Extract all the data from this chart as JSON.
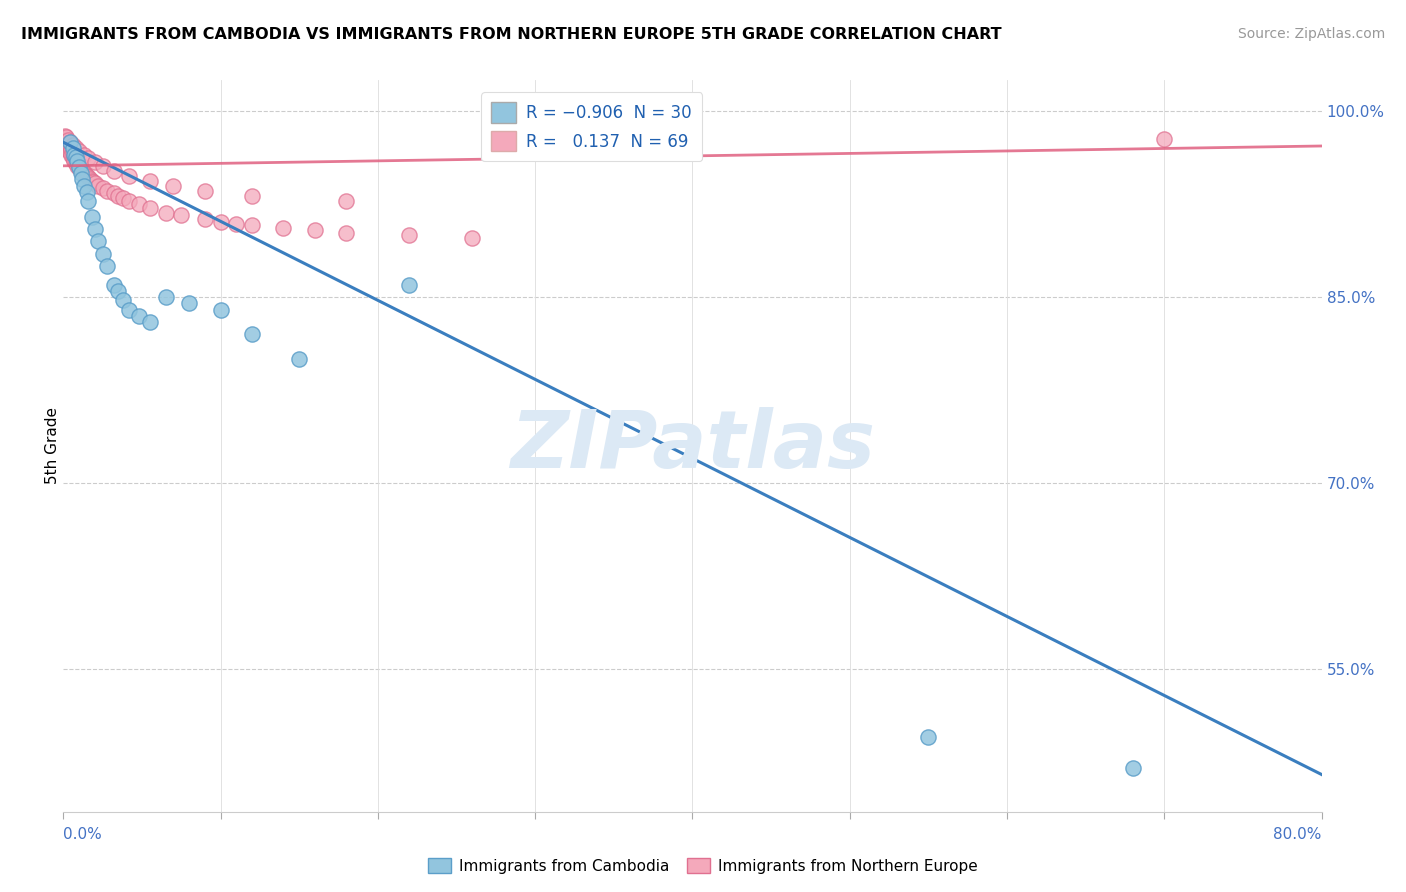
{
  "title": "IMMIGRANTS FROM CAMBODIA VS IMMIGRANTS FROM NORTHERN EUROPE 5TH GRADE CORRELATION CHART",
  "source": "Source: ZipAtlas.com",
  "ylabel": "5th Grade",
  "right_yticks": [
    "100.0%",
    "85.0%",
    "70.0%",
    "55.0%"
  ],
  "right_ytick_vals": [
    1.0,
    0.85,
    0.7,
    0.55
  ],
  "legend_r1": "R = −0.906  N = 30",
  "legend_r2": "R =   0.137  N = 69",
  "blue_color": "#92c5de",
  "blue_edge_color": "#5b9ec9",
  "pink_color": "#f4a9bb",
  "pink_edge_color": "#e07090",
  "blue_line_color": "#3a7ebf",
  "pink_line_color": "#e06080",
  "background_color": "#ffffff",
  "watermark_color": "#dce9f5",
  "blue_scatter_x": [
    0.004,
    0.006,
    0.007,
    0.008,
    0.009,
    0.01,
    0.011,
    0.012,
    0.013,
    0.015,
    0.016,
    0.018,
    0.02,
    0.022,
    0.025,
    0.028,
    0.032,
    0.035,
    0.038,
    0.042,
    0.048,
    0.055,
    0.065,
    0.08,
    0.1,
    0.12,
    0.15,
    0.22,
    0.55,
    0.68
  ],
  "blue_scatter_y": [
    0.975,
    0.97,
    0.965,
    0.963,
    0.96,
    0.955,
    0.95,
    0.945,
    0.94,
    0.935,
    0.928,
    0.915,
    0.905,
    0.895,
    0.885,
    0.875,
    0.86,
    0.855,
    0.848,
    0.84,
    0.835,
    0.83,
    0.85,
    0.845,
    0.84,
    0.82,
    0.8,
    0.86,
    0.495,
    0.47
  ],
  "pink_scatter_x": [
    0.001,
    0.001,
    0.002,
    0.002,
    0.003,
    0.003,
    0.004,
    0.004,
    0.005,
    0.005,
    0.006,
    0.006,
    0.007,
    0.007,
    0.008,
    0.008,
    0.009,
    0.009,
    0.01,
    0.01,
    0.011,
    0.012,
    0.013,
    0.014,
    0.015,
    0.016,
    0.017,
    0.018,
    0.019,
    0.02,
    0.022,
    0.025,
    0.028,
    0.032,
    0.035,
    0.038,
    0.042,
    0.048,
    0.055,
    0.065,
    0.075,
    0.09,
    0.1,
    0.11,
    0.12,
    0.14,
    0.16,
    0.18,
    0.22,
    0.26,
    0.001,
    0.002,
    0.003,
    0.004,
    0.006,
    0.008,
    0.01,
    0.013,
    0.016,
    0.02,
    0.025,
    0.032,
    0.042,
    0.055,
    0.07,
    0.09,
    0.12,
    0.18,
    0.7
  ],
  "pink_scatter_y": [
    0.978,
    0.974,
    0.976,
    0.972,
    0.973,
    0.969,
    0.971,
    0.967,
    0.969,
    0.965,
    0.966,
    0.962,
    0.964,
    0.96,
    0.962,
    0.958,
    0.96,
    0.956,
    0.958,
    0.954,
    0.956,
    0.953,
    0.951,
    0.949,
    0.948,
    0.947,
    0.945,
    0.944,
    0.943,
    0.942,
    0.94,
    0.938,
    0.936,
    0.934,
    0.932,
    0.93,
    0.928,
    0.925,
    0.922,
    0.918,
    0.916,
    0.913,
    0.911,
    0.909,
    0.908,
    0.906,
    0.904,
    0.902,
    0.9,
    0.898,
    0.98,
    0.979,
    0.977,
    0.975,
    0.973,
    0.97,
    0.968,
    0.965,
    0.962,
    0.959,
    0.956,
    0.952,
    0.948,
    0.944,
    0.94,
    0.936,
    0.932,
    0.928,
    0.978
  ],
  "blue_line_x0": 0.0,
  "blue_line_y0": 0.975,
  "blue_line_x1": 0.8,
  "blue_line_y1": 0.465,
  "pink_line_x0": 0.0,
  "pink_line_y0": 0.956,
  "pink_line_x1": 0.8,
  "pink_line_y1": 0.972,
  "xlim": [
    0.0,
    0.8
  ],
  "ylim": [
    0.435,
    1.025
  ]
}
